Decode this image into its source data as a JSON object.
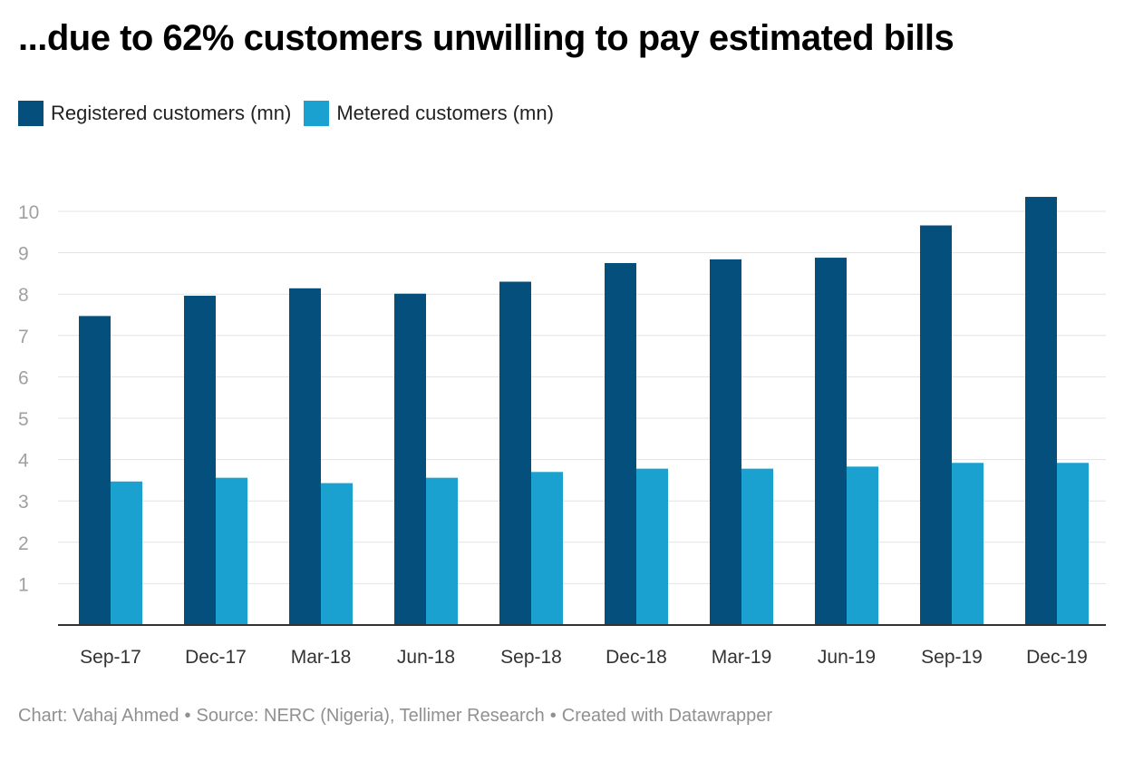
{
  "chart_data": {
    "type": "bar",
    "title": "...due to 62% customers unwilling to pay estimated bills",
    "categories": [
      "Sep-17",
      "Dec-17",
      "Mar-18",
      "Jun-18",
      "Sep-18",
      "Dec-18",
      "Mar-19",
      "Jun-19",
      "Sep-19",
      "Dec-19"
    ],
    "series": [
      {
        "name": "Registered customers (mn)",
        "color": "#054f7d",
        "values": [
          7.47,
          7.96,
          8.14,
          8.01,
          8.3,
          8.75,
          8.84,
          8.88,
          9.66,
          10.35
        ]
      },
      {
        "name": "Metered customers (mn)",
        "color": "#1aa1d0",
        "values": [
          3.47,
          3.56,
          3.43,
          3.56,
          3.7,
          3.78,
          3.78,
          3.83,
          3.92,
          3.92
        ]
      }
    ],
    "yticks": [
      "1",
      "2",
      "3",
      "4",
      "5",
      "6",
      "7",
      "8",
      "9",
      "10"
    ],
    "ylim": [
      0,
      10
    ],
    "grid": true,
    "legend_position": "top-left"
  },
  "footer": {
    "chart_by": "Chart: Vahaj Ahmed",
    "bullet": "•",
    "source": "Source: NERC (Nigeria), Tellimer Research",
    "created_with": "Created with Datawrapper"
  }
}
